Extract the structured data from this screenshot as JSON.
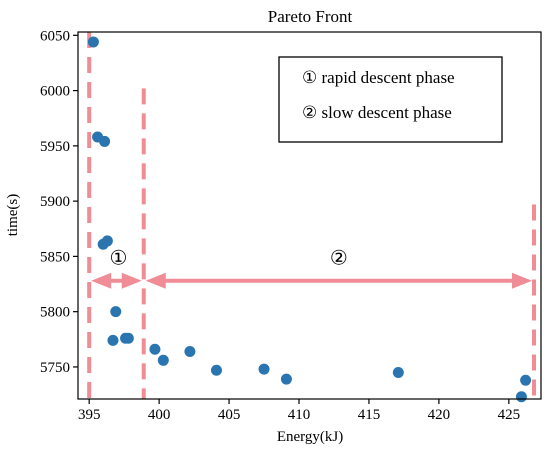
{
  "chart_data": {
    "type": "scatter",
    "title": "Pareto Front",
    "xlabel": "Energy(kJ)",
    "ylabel": "time(s)",
    "xlim": [
      394.2,
      427.3
    ],
    "ylim": [
      5721,
      6053
    ],
    "xticks": [
      395,
      400,
      405,
      410,
      415,
      420,
      425
    ],
    "yticks": [
      5750,
      5800,
      5850,
      5900,
      5950,
      6000,
      6050
    ],
    "grid": false,
    "point_color": "#2a75b0",
    "points": [
      {
        "x": 395.3,
        "y": 6044
      },
      {
        "x": 395.6,
        "y": 5958
      },
      {
        "x": 396.1,
        "y": 5954
      },
      {
        "x": 396.0,
        "y": 5861
      },
      {
        "x": 396.3,
        "y": 5864
      },
      {
        "x": 396.7,
        "y": 5774
      },
      {
        "x": 396.9,
        "y": 5800
      },
      {
        "x": 397.6,
        "y": 5776
      },
      {
        "x": 397.8,
        "y": 5776
      },
      {
        "x": 399.7,
        "y": 5766
      },
      {
        "x": 400.3,
        "y": 5756
      },
      {
        "x": 402.2,
        "y": 5764
      },
      {
        "x": 404.1,
        "y": 5747
      },
      {
        "x": 407.5,
        "y": 5748
      },
      {
        "x": 409.1,
        "y": 5739
      },
      {
        "x": 417.1,
        "y": 5745
      },
      {
        "x": 425.9,
        "y": 5723
      },
      {
        "x": 426.2,
        "y": 5738
      }
    ],
    "dividers": {
      "color": "#ef8c96",
      "lines": [
        {
          "x": 395.0,
          "y_from": 5721,
          "y_to": 6053
        },
        {
          "x": 398.9,
          "y_from": 5721,
          "y_to": 6002
        },
        {
          "x": 426.8,
          "y_from": 5721,
          "y_to": 5897
        }
      ]
    },
    "phase_arrows": [
      {
        "label": "①",
        "x_from": 395.0,
        "x_to": 398.9,
        "y": 5828
      },
      {
        "label": "②",
        "x_from": 398.9,
        "x_to": 426.8,
        "y": 5828
      }
    ],
    "legend": {
      "position": "top-right",
      "entries": [
        "① rapid descent phase",
        "② slow descent phase"
      ]
    }
  }
}
